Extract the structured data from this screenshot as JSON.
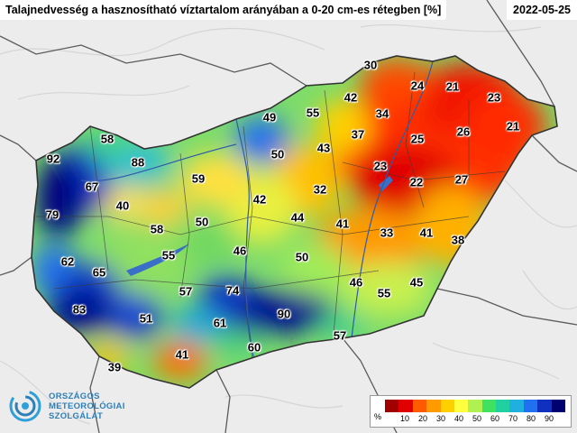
{
  "title": "Talajnedvesség a hasznosítható víztartalom arányában a 0-20 cm-es rétegben [%]",
  "date": "2022-05-25",
  "logo": {
    "lines": [
      "ORSZÁGOS",
      "METEOROLÓGIAI",
      "SZOLGÁLAT"
    ]
  },
  "legend": {
    "unit": "%",
    "ticks": [
      "10",
      "20",
      "30",
      "40",
      "50",
      "60",
      "70",
      "80",
      "90"
    ],
    "colors": [
      "#a00000",
      "#e00000",
      "#ff5a00",
      "#ff9a00",
      "#ffd000",
      "#ffff40",
      "#b0f050",
      "#40e060",
      "#20d0a0",
      "#20b0e0",
      "#2070f0",
      "#1030c0",
      "#000070"
    ]
  },
  "values": [
    {
      "v": "30"
    },
    {
      "v": "24"
    },
    {
      "v": "21"
    },
    {
      "v": "23"
    },
    {
      "v": "21"
    },
    {
      "v": "42"
    },
    {
      "v": "34"
    },
    {
      "v": "55"
    },
    {
      "v": "49"
    },
    {
      "v": "37"
    },
    {
      "v": "25"
    },
    {
      "v": "26"
    },
    {
      "v": "58"
    },
    {
      "v": "43"
    },
    {
      "v": "50"
    },
    {
      "v": "92"
    },
    {
      "v": "88"
    },
    {
      "v": "23"
    },
    {
      "v": "59"
    },
    {
      "v": "32"
    },
    {
      "v": "22"
    },
    {
      "v": "27"
    },
    {
      "v": "67"
    },
    {
      "v": "42"
    },
    {
      "v": "40"
    },
    {
      "v": "79"
    },
    {
      "v": "44"
    },
    {
      "v": "50"
    },
    {
      "v": "41"
    },
    {
      "v": "58"
    },
    {
      "v": "33"
    },
    {
      "v": "41"
    },
    {
      "v": "38"
    },
    {
      "v": "46"
    },
    {
      "v": "62"
    },
    {
      "v": "55"
    },
    {
      "v": "50"
    },
    {
      "v": "65"
    },
    {
      "v": "46"
    },
    {
      "v": "45"
    },
    {
      "v": "57"
    },
    {
      "v": "74"
    },
    {
      "v": "55"
    },
    {
      "v": "83"
    },
    {
      "v": "90"
    },
    {
      "v": "51"
    },
    {
      "v": "61"
    },
    {
      "v": "57"
    },
    {
      "v": "60"
    },
    {
      "v": "41"
    },
    {
      "v": "39"
    }
  ]
}
